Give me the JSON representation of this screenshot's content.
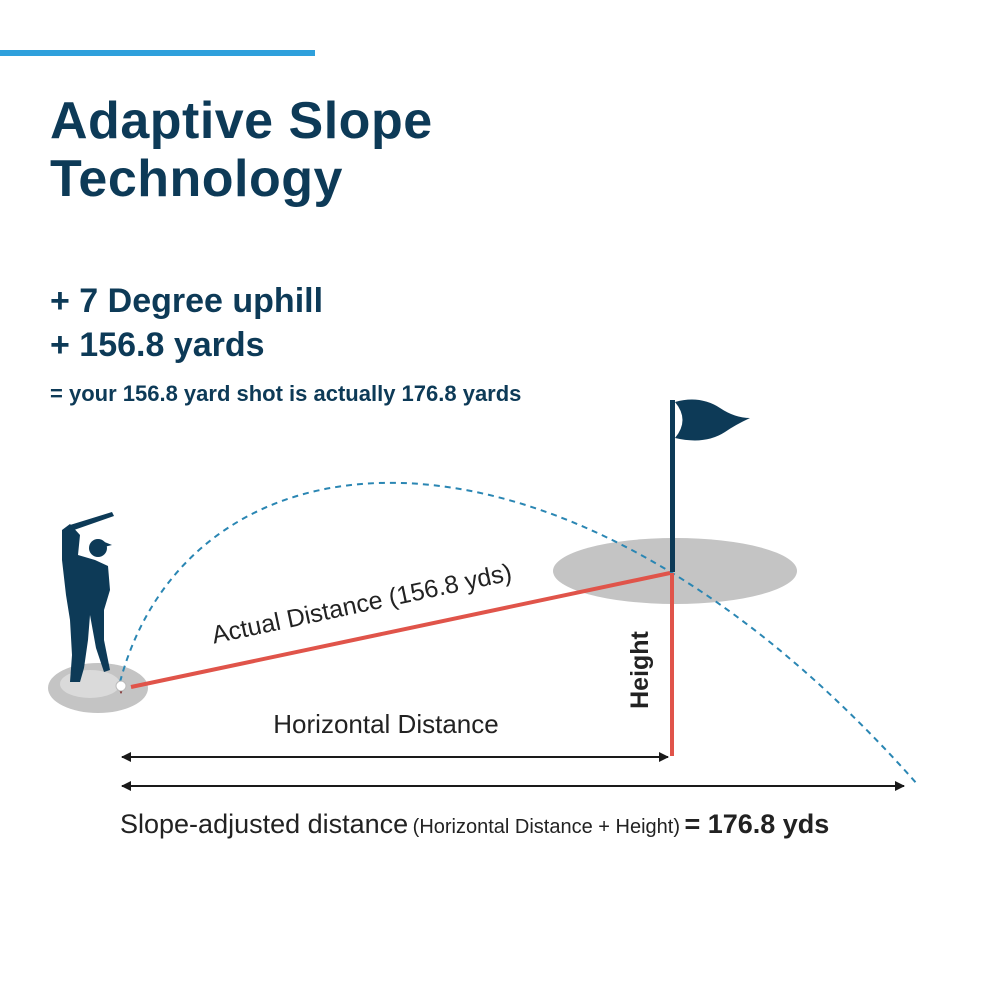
{
  "header": {
    "title_line1": "Adaptive Slope",
    "title_line2": "Technology"
  },
  "facts": {
    "line1": "+ 7 Degree uphill",
    "line2": "+ 156.8 yards",
    "line3": "= your 156.8 yard shot is actually 176.8 yards"
  },
  "diagram": {
    "actual_distance_label": "Actual Distance (156.8 yds)",
    "height_label": "Height",
    "horizontal_label": "Horizontal Distance",
    "slope_main": "Slope-adjusted distance",
    "slope_paren": "(Horizontal Distance + Height)",
    "slope_result": "= 176.8 yds"
  },
  "colors": {
    "navy": "#0d3a57",
    "accent": "#2fa0dc",
    "red": "#e0544a",
    "gray": "#c4c4c4"
  }
}
